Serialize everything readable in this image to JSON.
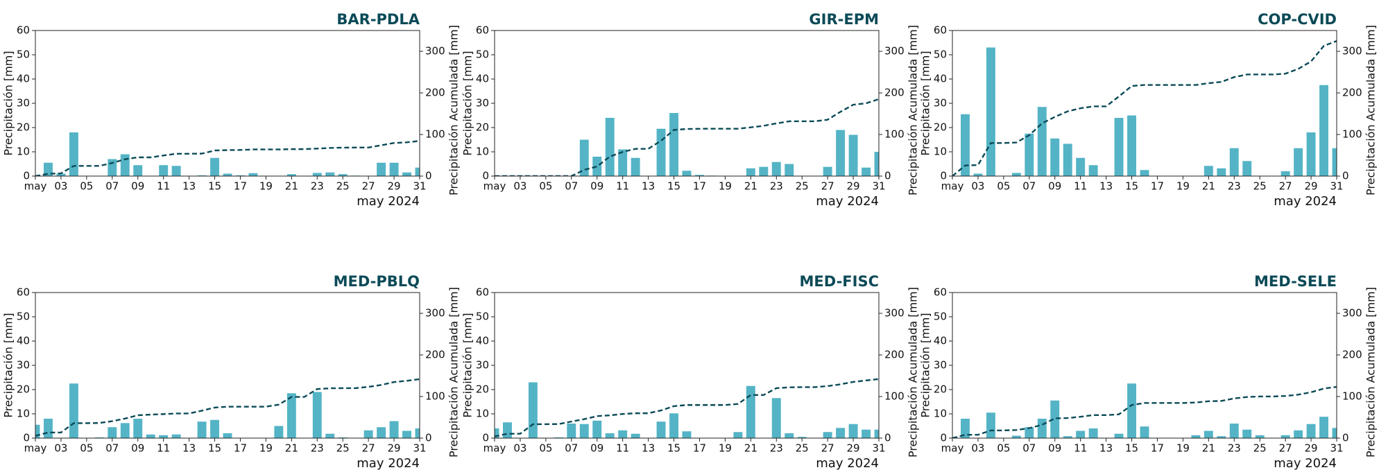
{
  "chart_data": [
    {
      "type": "bar",
      "title": "BAR-PDLA",
      "x_label": "may 2024",
      "y_label": "Precipitación [mm]",
      "y2_label": "Precipitación Acumulada [mm]",
      "categories": [
        "may",
        null,
        "03",
        null,
        "05",
        null,
        "07",
        null,
        "09",
        null,
        "11",
        null,
        "13",
        null,
        "15",
        null,
        "17",
        null,
        "19",
        null,
        "21",
        null,
        "23",
        null,
        "25",
        null,
        "27",
        null,
        "29",
        null,
        "31"
      ],
      "ylim": [
        0,
        60
      ],
      "yticks": [
        0,
        10,
        20,
        30,
        40,
        50,
        60
      ],
      "y2lim": [
        0,
        350
      ],
      "y2ticks": [
        0,
        100,
        200,
        300
      ],
      "series": [
        {
          "color": "#54b4c6",
          "values": [
            0,
            5.5,
            1,
            18,
            0,
            0,
            7,
            9,
            4.5,
            0,
            4.5,
            4.2,
            0,
            0.3,
            7.5,
            1,
            0.3,
            1.2,
            0,
            0,
            0.8,
            0,
            1.3,
            1.5,
            0.8,
            0.2,
            0,
            5.5,
            5.5,
            1.5,
            3.5
          ]
        },
        {
          "type": "line",
          "axis": "y2",
          "color": "#0b4a57",
          "values": [
            0,
            5.5,
            6.5,
            24.5,
            24.5,
            24.5,
            31.5,
            40.5,
            45,
            45,
            49.5,
            53.7,
            53.7,
            54,
            61.5,
            62.5,
            62.8,
            64,
            64,
            64,
            64.8,
            64.8,
            66.1,
            67.6,
            68.4,
            68.6,
            68.6,
            74.1,
            79.6,
            81.1,
            84.6
          ]
        }
      ]
    },
    {
      "type": "bar",
      "title": "GIR-EPM",
      "x_label": "may 2024",
      "y_label": "Precipitación [mm]",
      "y2_label": "Precipitación Acumulada [mm]",
      "categories": [
        "may",
        null,
        "03",
        null,
        "05",
        null,
        "07",
        null,
        "09",
        null,
        "11",
        null,
        "13",
        null,
        "15",
        null,
        "17",
        null,
        "19",
        null,
        "21",
        null,
        "23",
        null,
        "25",
        null,
        "27",
        null,
        "29",
        null,
        "31"
      ],
      "ylim": [
        0,
        60
      ],
      "yticks": [
        0,
        10,
        20,
        30,
        40,
        50,
        60
      ],
      "y2lim": [
        0,
        350
      ],
      "y2ticks": [
        0,
        100,
        200,
        300
      ],
      "series": [
        {
          "color": "#54b4c6",
          "values": [
            0,
            0,
            0,
            0,
            0,
            0,
            0,
            15,
            8,
            24,
            11,
            7.5,
            0,
            19.5,
            26,
            2.2,
            0.5,
            0.2,
            0,
            0,
            3.2,
            3.8,
            5.8,
            5,
            0,
            0,
            3.8,
            19,
            17,
            3.5,
            10
          ]
        },
        {
          "type": "line",
          "axis": "y2",
          "color": "#0b4a57",
          "values": [
            0,
            0,
            0,
            0,
            0,
            0,
            0,
            15,
            23,
            47,
            58,
            65.5,
            65.5,
            85,
            111,
            113.2,
            113.7,
            113.9,
            113.9,
            113.9,
            117.1,
            120.9,
            126.7,
            131.7,
            131.7,
            131.7,
            135.5,
            154.5,
            171.5,
            175,
            185
          ]
        }
      ]
    },
    {
      "type": "bar",
      "title": "COP-CVID",
      "x_label": "may 2024",
      "y_label": "Precipitación [mm]",
      "y2_label": "Precipitación Acumulada [mm]",
      "categories": [
        "may",
        null,
        "03",
        null,
        "05",
        null,
        "07",
        null,
        "09",
        null,
        "11",
        null,
        "13",
        null,
        "15",
        null,
        "17",
        null,
        "19",
        null,
        "21",
        null,
        "23",
        null,
        "25",
        null,
        "27",
        null,
        "29",
        null,
        "31"
      ],
      "ylim": [
        0,
        60
      ],
      "yticks": [
        0,
        10,
        20,
        30,
        40,
        50,
        60
      ],
      "y2lim": [
        0,
        350
      ],
      "y2ticks": [
        0,
        100,
        200,
        300
      ],
      "series": [
        {
          "color": "#54b4c6",
          "values": [
            0,
            25.5,
            1,
            53,
            0,
            1.3,
            17.5,
            28.5,
            15.5,
            13.3,
            7.5,
            4.5,
            0,
            24,
            25,
            2.5,
            0,
            0,
            0,
            0,
            4.2,
            3.2,
            11.5,
            6.2,
            0,
            0,
            2,
            11.5,
            18,
            37.5,
            11.5
          ]
        },
        {
          "type": "line",
          "axis": "y2",
          "color": "#0b4a57",
          "values": [
            0,
            25.5,
            26.5,
            79.5,
            79.5,
            80.8,
            98.3,
            126.8,
            142.3,
            155.6,
            163.1,
            167.6,
            167.6,
            191.6,
            216.6,
            219.1,
            219.1,
            219.1,
            219.1,
            219.1,
            223.3,
            226.5,
            238,
            244.2,
            244.2,
            244.2,
            246.2,
            257.7,
            275.7,
            313.2,
            324.7
          ]
        }
      ]
    },
    {
      "type": "bar",
      "title": "MED-PBLQ",
      "x_label": "may 2024",
      "y_label": "Precipitación [mm]",
      "y2_label": "Precipitación Acumulada [mm]",
      "categories": [
        "may",
        null,
        "03",
        null,
        "05",
        null,
        "07",
        null,
        "09",
        null,
        "11",
        null,
        "13",
        null,
        "15",
        null,
        "17",
        null,
        "19",
        null,
        "21",
        null,
        "23",
        null,
        "25",
        null,
        "27",
        null,
        "29",
        null,
        "31"
      ],
      "ylim": [
        0,
        60
      ],
      "yticks": [
        0,
        10,
        20,
        30,
        40,
        50,
        60
      ],
      "y2lim": [
        0,
        350
      ],
      "y2ticks": [
        0,
        100,
        200,
        300
      ],
      "series": [
        {
          "color": "#54b4c6",
          "values": [
            5.5,
            8,
            0,
            22.5,
            0,
            0.3,
            4.5,
            6.2,
            8,
            1.5,
            1.2,
            1.5,
            0,
            6.8,
            7.5,
            2,
            0,
            0,
            0,
            5,
            18.5,
            0,
            19,
            1.8,
            0.3,
            0,
            3.2,
            4.5,
            7,
            3,
            4
          ]
        },
        {
          "type": "line",
          "axis": "y2",
          "color": "#0b4a57",
          "values": [
            5.5,
            13.5,
            13.5,
            36,
            36,
            36.3,
            40.8,
            47,
            55,
            56.5,
            57.7,
            59.2,
            59.2,
            66,
            73.5,
            75.5,
            75.5,
            75.5,
            75.5,
            80.5,
            99,
            99,
            118,
            119.8,
            120.1,
            120.1,
            123.3,
            127.8,
            134.8,
            137.8,
            141.8
          ]
        }
      ]
    },
    {
      "type": "bar",
      "title": "MED-FISC",
      "x_label": "may 2024",
      "y_label": "Precipitación [mm]",
      "y2_label": "Precipitación Acumulada [mm]",
      "categories": [
        "may",
        null,
        "03",
        null,
        "05",
        null,
        "07",
        null,
        "09",
        null,
        "11",
        null,
        "13",
        null,
        "15",
        null,
        "17",
        null,
        "19",
        null,
        "21",
        null,
        "23",
        null,
        "25",
        null,
        "27",
        null,
        "29",
        null,
        "31"
      ],
      "ylim": [
        0,
        60
      ],
      "yticks": [
        0,
        10,
        20,
        30,
        40,
        50,
        60
      ],
      "y2lim": [
        0,
        350
      ],
      "y2ticks": [
        0,
        100,
        200,
        300
      ],
      "series": [
        {
          "color": "#54b4c6",
          "values": [
            4,
            6.5,
            0,
            23,
            0,
            0.3,
            6,
            5.8,
            7.2,
            2,
            3.2,
            1.8,
            0,
            6.8,
            10.2,
            2.8,
            0,
            0,
            0,
            2.5,
            21.5,
            0,
            16.5,
            2,
            0.5,
            0,
            2.5,
            4.2,
            5.8,
            3.5,
            3.5
          ]
        },
        {
          "type": "line",
          "axis": "y2",
          "color": "#0b4a57",
          "values": [
            4,
            10.5,
            10.5,
            33.5,
            33.5,
            33.8,
            39.8,
            45.6,
            52.8,
            54.8,
            58,
            59.8,
            59.8,
            66.6,
            76.8,
            79.6,
            79.6,
            79.6,
            79.6,
            82.1,
            103.6,
            103.6,
            120.1,
            122.1,
            122.6,
            122.6,
            125.1,
            129.3,
            135.1,
            138.6,
            142.1
          ]
        }
      ]
    },
    {
      "type": "bar",
      "title": "MED-SELE",
      "x_label": "may 2024",
      "y_label": "Precipitación [mm]",
      "y2_label": "Precipitación Acumulada [mm]",
      "categories": [
        "may",
        null,
        "03",
        null,
        "05",
        null,
        "07",
        null,
        "09",
        null,
        "11",
        null,
        "13",
        null,
        "15",
        null,
        "17",
        null,
        "19",
        null,
        "21",
        null,
        "23",
        null,
        "25",
        null,
        "27",
        null,
        "29",
        null,
        "31"
      ],
      "ylim": [
        0,
        60
      ],
      "yticks": [
        0,
        10,
        20,
        30,
        40,
        50,
        60
      ],
      "y2lim": [
        0,
        350
      ],
      "y2ticks": [
        0,
        100,
        200,
        300
      ],
      "series": [
        {
          "color": "#54b4c6",
          "values": [
            0,
            8,
            0,
            10.5,
            0,
            1,
            4.5,
            8,
            15.5,
            0.8,
            3,
            4,
            0,
            1.8,
            22.5,
            4.8,
            0,
            0,
            0,
            1.2,
            3,
            0.8,
            6,
            3.5,
            1.2,
            0,
            1.2,
            3.2,
            5.8,
            8.8,
            4.2
          ]
        },
        {
          "type": "line",
          "axis": "y2",
          "color": "#0b4a57",
          "values": [
            0,
            8,
            8,
            18.5,
            18.5,
            19.5,
            24,
            32,
            47.5,
            48.3,
            51.3,
            55.3,
            55.3,
            57.1,
            79.6,
            84.4,
            84.4,
            84.4,
            84.4,
            85.6,
            88.6,
            89.4,
            95.4,
            98.9,
            100.1,
            100.1,
            101.3,
            104.5,
            110.3,
            119.1,
            123.3
          ]
        }
      ]
    }
  ]
}
